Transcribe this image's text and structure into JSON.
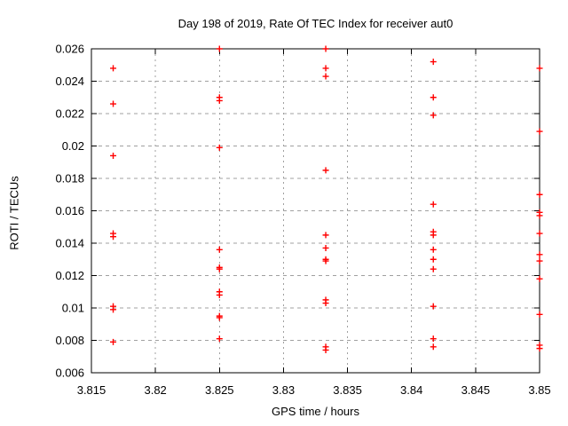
{
  "colors": {
    "background": "#ffffff",
    "text": "#000000",
    "border": "#000000",
    "grid": "#a0a0a0",
    "marker": "#ff0000"
  },
  "chart_data": {
    "type": "scatter",
    "title": "Day 198 of 2019, Rate Of TEC Index for receiver aut0",
    "xlabel": "GPS time / hours",
    "ylabel": "ROTI / TECUs",
    "xlim": [
      3.815,
      3.85
    ],
    "ylim": [
      0.006,
      0.026
    ],
    "xtick_values": [
      3.815,
      3.82,
      3.825,
      3.83,
      3.835,
      3.84,
      3.845,
      3.85
    ],
    "xtick_labels": [
      "3.815",
      "3.82",
      "3.825",
      "3.83",
      "3.835",
      "3.84",
      "3.845",
      "3.85"
    ],
    "ytick_values": [
      0.006,
      0.008,
      0.01,
      0.012,
      0.014,
      0.016,
      0.018,
      0.02,
      0.022,
      0.024,
      0.026
    ],
    "ytick_labels": [
      "0.006",
      "0.008",
      "0.01",
      "0.012",
      "0.014",
      "0.016",
      "0.018",
      "0.02",
      "0.022",
      "0.024",
      "0.026"
    ],
    "grid": true,
    "legend": "none",
    "marker_shape": "plus",
    "marker_color": "#ff0000",
    "series": [
      {
        "name": "ROTI",
        "points": [
          [
            3.8167,
            0.0248
          ],
          [
            3.8167,
            0.0226
          ],
          [
            3.8167,
            0.0194
          ],
          [
            3.8167,
            0.0146
          ],
          [
            3.8167,
            0.0144
          ],
          [
            3.8167,
            0.0101
          ],
          [
            3.8167,
            0.0099
          ],
          [
            3.8167,
            0.0079
          ],
          [
            3.825,
            0.026
          ],
          [
            3.825,
            0.023
          ],
          [
            3.825,
            0.0228
          ],
          [
            3.825,
            0.0199
          ],
          [
            3.825,
            0.0136
          ],
          [
            3.825,
            0.0125
          ],
          [
            3.825,
            0.0124
          ],
          [
            3.825,
            0.011
          ],
          [
            3.825,
            0.0108
          ],
          [
            3.825,
            0.0095
          ],
          [
            3.825,
            0.0094
          ],
          [
            3.825,
            0.0081
          ],
          [
            3.8333,
            0.026
          ],
          [
            3.8333,
            0.0248
          ],
          [
            3.8333,
            0.0243
          ],
          [
            3.8333,
            0.0185
          ],
          [
            3.8333,
            0.0145
          ],
          [
            3.8333,
            0.0137
          ],
          [
            3.8333,
            0.013
          ],
          [
            3.8333,
            0.0129
          ],
          [
            3.8333,
            0.0105
          ],
          [
            3.8333,
            0.0103
          ],
          [
            3.8333,
            0.0076
          ],
          [
            3.8333,
            0.0074
          ],
          [
            3.8417,
            0.0252
          ],
          [
            3.8417,
            0.023
          ],
          [
            3.8417,
            0.0219
          ],
          [
            3.8417,
            0.0164
          ],
          [
            3.8417,
            0.0147
          ],
          [
            3.8417,
            0.0145
          ],
          [
            3.8417,
            0.0136
          ],
          [
            3.8417,
            0.013
          ],
          [
            3.8417,
            0.0124
          ],
          [
            3.8417,
            0.0101
          ],
          [
            3.8417,
            0.0081
          ],
          [
            3.8417,
            0.0076
          ],
          [
            3.85,
            0.0248
          ],
          [
            3.85,
            0.0209
          ],
          [
            3.85,
            0.017
          ],
          [
            3.85,
            0.0159
          ],
          [
            3.85,
            0.0157
          ],
          [
            3.85,
            0.0146
          ],
          [
            3.85,
            0.0133
          ],
          [
            3.85,
            0.0129
          ],
          [
            3.85,
            0.0118
          ],
          [
            3.85,
            0.0096
          ],
          [
            3.85,
            0.0077
          ],
          [
            3.85,
            0.0075
          ]
        ]
      }
    ]
  }
}
